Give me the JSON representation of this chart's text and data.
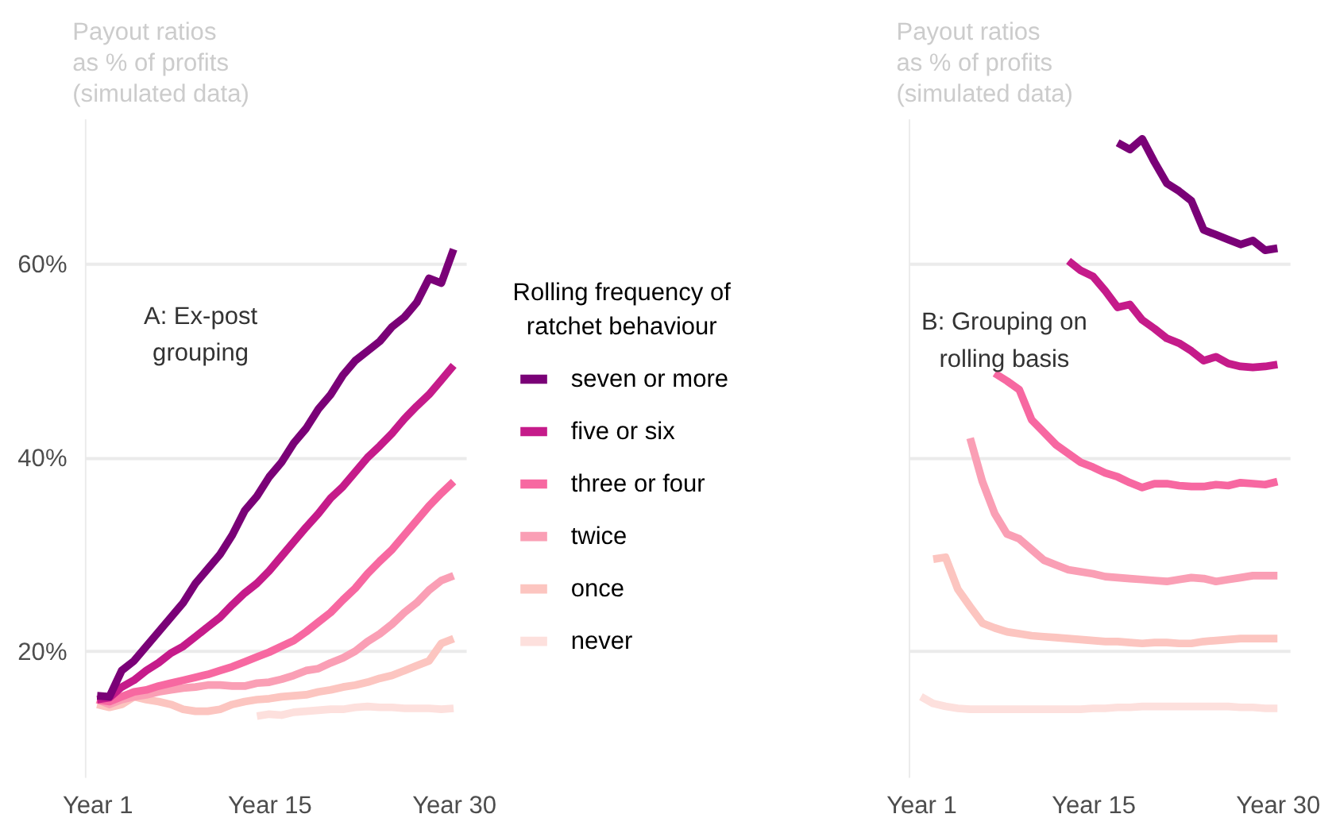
{
  "chart_data": [
    {
      "type": "line",
      "title": "Payout ratios\nas % of profits\n(simulated data)",
      "annotations": [
        "A: Ex-post\ngrouping"
      ],
      "legend_title": "Rolling frequency of\nratchet behaviour",
      "legend": "right",
      "grid": "y",
      "ylim": [
        7,
        75
      ],
      "yticks": [
        {
          "value": 20,
          "label": "20%"
        },
        {
          "value": 40,
          "label": "40%"
        },
        {
          "value": 60,
          "label": "60%"
        }
      ],
      "categories": [
        "Year 1",
        null,
        null,
        null,
        null,
        null,
        null,
        null,
        null,
        null,
        null,
        null,
        null,
        null,
        "Year 15",
        null,
        null,
        null,
        null,
        null,
        null,
        null,
        null,
        null,
        null,
        null,
        null,
        null,
        null,
        "Year 30"
      ],
      "series": [
        {
          "name": "never",
          "color": "#fde0dd",
          "values": [
            null,
            null,
            null,
            null,
            null,
            null,
            null,
            null,
            null,
            null,
            null,
            null,
            null,
            13.3,
            13.5,
            13.4,
            13.7,
            13.8,
            13.9,
            14,
            14,
            14.2,
            14.3,
            14.2,
            14.2,
            14.1,
            14.1,
            14.1,
            14,
            14.1
          ]
        },
        {
          "name": "once",
          "color": "#fcc5c0",
          "values": [
            14.5,
            14.2,
            14.5,
            15.3,
            15,
            14.8,
            14.5,
            14,
            13.8,
            13.8,
            14,
            14.5,
            14.8,
            15,
            15.1,
            15.3,
            15.4,
            15.5,
            15.8,
            16,
            16.3,
            16.5,
            16.8,
            17.2,
            17.5,
            18,
            18.5,
            19,
            20.8,
            21.3
          ]
        },
        {
          "name": "twice",
          "color": "#fa9fb5",
          "values": [
            15,
            14.5,
            15,
            15.3,
            15.5,
            15.8,
            16,
            16.2,
            16.3,
            16.5,
            16.5,
            16.4,
            16.4,
            16.7,
            16.8,
            17.1,
            17.5,
            18,
            18.2,
            18.8,
            19.3,
            20,
            21,
            21.8,
            22.8,
            24,
            25,
            26.3,
            27.3,
            27.8
          ]
        },
        {
          "name": "three or four",
          "color": "#f768a1",
          "values": [
            15,
            14.8,
            15.3,
            15.8,
            16,
            16.4,
            16.7,
            17,
            17.3,
            17.6,
            18,
            18.4,
            18.9,
            19.4,
            19.9,
            20.5,
            21.1,
            22,
            23,
            24,
            25.3,
            26.5,
            28,
            29.3,
            30.5,
            32,
            33.5,
            35,
            36.3,
            37.5
          ]
        },
        {
          "name": "five or six",
          "color": "#c51b8a",
          "values": [
            15,
            15.2,
            16.3,
            17,
            18,
            18.8,
            19.8,
            20.5,
            21.5,
            22.5,
            23.5,
            24.8,
            26,
            27,
            28.3,
            29.8,
            31.3,
            32.8,
            34.2,
            35.8,
            37,
            38.5,
            40,
            41.2,
            42.5,
            44,
            45.3,
            46.5,
            48,
            49.5
          ]
        },
        {
          "name": "seven or more",
          "color": "#7a0177",
          "values": [
            15.4,
            15.3,
            18,
            19,
            20.5,
            22,
            23.5,
            25,
            27,
            28.5,
            30,
            32,
            34.5,
            36,
            38,
            39.5,
            41.5,
            43,
            45,
            46.5,
            48.5,
            50,
            51,
            52,
            53.5,
            54.5,
            56,
            58.5,
            58,
            61.5
          ]
        }
      ]
    },
    {
      "type": "line",
      "title": "Payout ratios\nas % of profits\n(simulated data)",
      "annotations": [
        "B: Grouping on\nrolling basis"
      ],
      "grid": "y",
      "tick_labels": "x",
      "ylim": [
        7,
        75
      ],
      "yticks": [
        {
          "value": 20,
          "label": null
        },
        {
          "value": 40,
          "label": null
        },
        {
          "value": 60,
          "label": null
        }
      ],
      "categories": [
        "Year 1",
        null,
        null,
        null,
        null,
        null,
        null,
        null,
        null,
        null,
        null,
        null,
        null,
        null,
        "Year 15",
        null,
        null,
        null,
        null,
        null,
        null,
        null,
        null,
        null,
        null,
        null,
        null,
        null,
        null,
        "Year 30"
      ],
      "series": [
        {
          "color": "#fde0dd",
          "values": [
            15.3,
            14.6,
            14.3,
            14.1,
            14,
            14,
            14,
            14,
            14,
            14,
            14,
            14,
            14,
            14,
            14.1,
            14.1,
            14.2,
            14.2,
            14.3,
            14.3,
            14.3,
            14.3,
            14.3,
            14.3,
            14.3,
            14.3,
            14.2,
            14.2,
            14.1,
            14.1
          ]
        },
        {
          "color": "#fcc5c0",
          "values": [
            null,
            29.5,
            29.7,
            26.4,
            24.6,
            22.9,
            22.4,
            22,
            21.8,
            21.6,
            21.5,
            21.4,
            21.3,
            21.2,
            21.1,
            21,
            21,
            20.9,
            20.8,
            20.9,
            20.9,
            20.8,
            20.8,
            21,
            21.1,
            21.2,
            21.3,
            21.3,
            21.3,
            21.3
          ]
        },
        {
          "color": "#fa9fb5",
          "values": [
            null,
            null,
            null,
            null,
            42,
            37.5,
            34.2,
            32.1,
            31.6,
            30.5,
            29.4,
            28.9,
            28.4,
            28.2,
            28,
            27.7,
            27.6,
            27.5,
            27.4,
            27.3,
            27.2,
            27.4,
            27.6,
            27.5,
            27.2,
            27.4,
            27.6,
            27.8,
            27.8,
            27.8
          ]
        },
        {
          "color": "#f768a1",
          "values": [
            null,
            null,
            null,
            null,
            null,
            null,
            48.7,
            47.9,
            47,
            43.9,
            42.6,
            41.3,
            40.4,
            39.5,
            39,
            38.4,
            38,
            37.4,
            36.9,
            37.3,
            37.3,
            37.1,
            37,
            37,
            37.2,
            37.1,
            37.4,
            37.3,
            37.2,
            37.5
          ]
        },
        {
          "color": "#c51b8a",
          "values": [
            null,
            null,
            null,
            null,
            null,
            null,
            null,
            null,
            null,
            null,
            null,
            null,
            60.3,
            59.3,
            58.7,
            57.2,
            55.5,
            55.8,
            54.2,
            53.3,
            52.3,
            51.8,
            51,
            50,
            50.4,
            49.7,
            49.4,
            49.3,
            49.4,
            49.6
          ]
        },
        {
          "color": "#7a0177",
          "values": [
            null,
            null,
            null,
            null,
            null,
            null,
            null,
            null,
            null,
            null,
            null,
            null,
            null,
            null,
            null,
            null,
            72.5,
            71.8,
            72.9,
            70.5,
            68.3,
            67.5,
            66.5,
            63.5,
            63,
            62.5,
            62,
            62.4,
            61.4,
            61.6
          ]
        }
      ]
    }
  ]
}
